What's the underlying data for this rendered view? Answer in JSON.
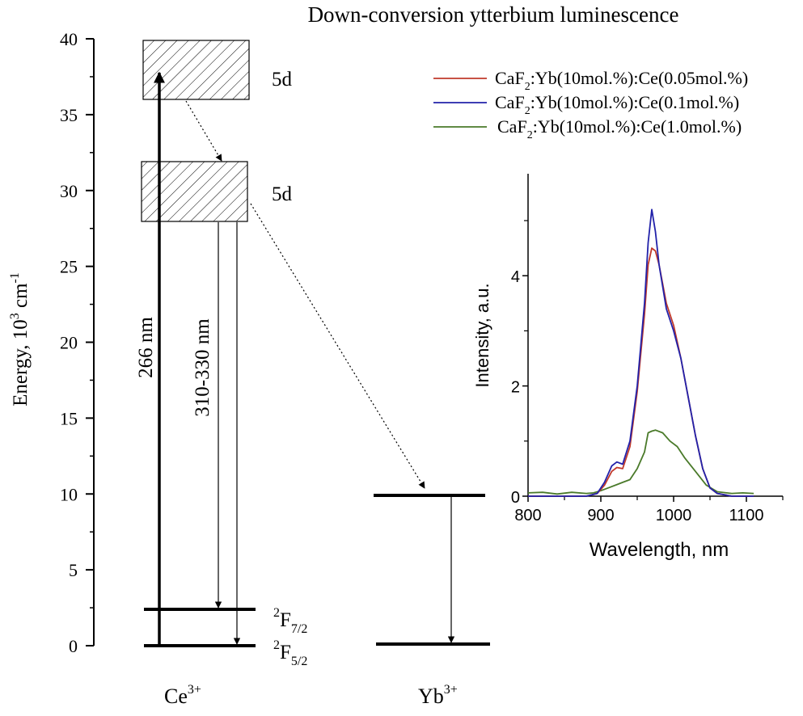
{
  "title": "Down-conversion ytterbium luminescence",
  "energy_axis": {
    "label_main": "Energy, 10",
    "label_sup1": "3",
    "label_unit": " cm",
    "label_sup2": "-1",
    "range": [
      0,
      40
    ],
    "ticks": [
      "0",
      "5",
      "10",
      "15",
      "20",
      "25",
      "30",
      "35",
      "40"
    ]
  },
  "levels": {
    "ce_5d_upper": {
      "label": "5d",
      "range": [
        36,
        40
      ]
    },
    "ce_5d_lower": {
      "label": "5d",
      "range": [
        28,
        32
      ]
    },
    "ce_2f72": {
      "sym": "2",
      "main": "F",
      "sub": "7/2",
      "energy": 2.4
    },
    "ce_2f52": {
      "sym": "2",
      "main": "F",
      "sub": "5/2",
      "energy": 0
    },
    "yb_excited": {
      "energy": 9.9
    },
    "yb_ground": {
      "energy": 0.1
    }
  },
  "transitions": {
    "excitation": "266 nm",
    "emission": "310-330 nm"
  },
  "ions": {
    "ce": {
      "main": "Ce",
      "sup": "3+"
    },
    "yb": {
      "main": "Yb",
      "sup": "3+"
    }
  },
  "chart_data": {
    "type": "line",
    "xlabel": "Wavelength, nm",
    "ylabel": "Intensity, a.u.",
    "xlim": [
      800,
      1150
    ],
    "ylim": [
      0,
      5.85
    ],
    "xticks": [
      "800",
      "900",
      "1000",
      "1100"
    ],
    "yticks": [
      "0",
      "2",
      "4"
    ],
    "legend_position": "top-right",
    "series": [
      {
        "name_pre": "CaF",
        "name_sub": "2",
        "name_post": ":Yb(10mol.%):Ce(0.05mol.%)",
        "color": "#c0392b",
        "x": [
          800,
          880,
          895,
          905,
          915,
          922,
          930,
          940,
          950,
          960,
          965,
          970,
          975,
          980,
          990,
          1000,
          1010,
          1020,
          1030,
          1040,
          1050,
          1060,
          1080,
          1110
        ],
        "y": [
          0,
          0,
          0.05,
          0.2,
          0.45,
          0.52,
          0.5,
          0.9,
          1.9,
          3.3,
          4.2,
          4.5,
          4.45,
          4.2,
          3.5,
          3.1,
          2.5,
          1.8,
          1.1,
          0.5,
          0.15,
          0.05,
          0,
          0
        ]
      },
      {
        "name_pre": "CaF",
        "name_sub": "2",
        "name_post": ":Yb(10mol.%):Ce(0.1mol.%)",
        "color": "#2222aa",
        "x": [
          800,
          880,
          895,
          905,
          915,
          922,
          930,
          940,
          950,
          960,
          965,
          970,
          975,
          980,
          990,
          1000,
          1010,
          1020,
          1030,
          1040,
          1050,
          1060,
          1080,
          1110
        ],
        "y": [
          0,
          0,
          0.05,
          0.25,
          0.55,
          0.62,
          0.58,
          1.0,
          2.0,
          3.5,
          4.6,
          5.2,
          4.8,
          4.2,
          3.4,
          3.0,
          2.5,
          1.8,
          1.1,
          0.5,
          0.15,
          0.05,
          0,
          0
        ]
      },
      {
        "name_pre": "CaF",
        "name_sub": "2",
        "name_post": ":Yb(10mol.%):Ce(1.0mol.%)",
        "color": "#4a7a2a",
        "x": [
          800,
          820,
          840,
          860,
          880,
          890,
          900,
          910,
          920,
          930,
          940,
          950,
          960,
          965,
          970,
          975,
          985,
          995,
          1005,
          1015,
          1030,
          1045,
          1060,
          1080,
          1095,
          1110
        ],
        "y": [
          0.06,
          0.07,
          0.04,
          0.07,
          0.05,
          0.06,
          0.1,
          0.15,
          0.2,
          0.25,
          0.3,
          0.5,
          0.8,
          1.15,
          1.18,
          1.2,
          1.15,
          1.0,
          0.9,
          0.7,
          0.45,
          0.2,
          0.08,
          0.05,
          0.06,
          0.05
        ]
      }
    ]
  }
}
